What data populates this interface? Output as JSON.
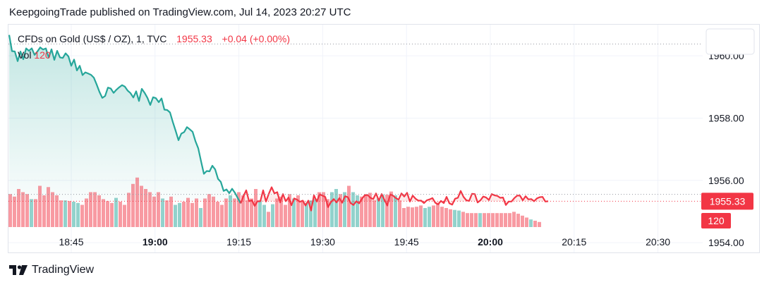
{
  "header": {
    "published_text": "KeepgoingTrade published on TradingView.com, Jul 14, 2023 20:27 UTC"
  },
  "legend": {
    "symbol": "CFDs on Gold (US$ / OZ), 1, TVC",
    "last_price": "1955.33",
    "change": "+0.04 (+0.00%)",
    "volume_label": "Vol",
    "volume_value": "120"
  },
  "footer": {
    "brand": "TradingView"
  },
  "colors": {
    "up": "#26a69a",
    "down": "#f23645",
    "area_up": "#26a69a",
    "area_down": "#ef5350",
    "grid": "#f0f3fa"
  },
  "chart_data": {
    "type": "area",
    "title": "CFDs on Gold (US$ / OZ), 1, TVC",
    "price_axis": {
      "ylim": [
        1954.5,
        1961.0
      ],
      "ticks": [
        "1954.00",
        "1956.00",
        "1958.00",
        "1960.00"
      ],
      "tick_values": [
        1954.0,
        1956.0,
        1958.0,
        1960.0
      ]
    },
    "time_axis": {
      "ticks": [
        "18:45",
        "19:00",
        "19:15",
        "19:30",
        "19:45",
        "20:00",
        "20:15",
        "20:30"
      ],
      "bold": [
        false,
        true,
        false,
        false,
        false,
        true,
        false,
        false
      ]
    },
    "baseline": 1955.33,
    "last_price_label": "1955.33",
    "volume_label": "120",
    "grid": true,
    "series": [
      {
        "name": "Price",
        "values": [
          1960.67,
          1960.15,
          1960.14,
          1959.83,
          1960.14,
          1959.89,
          1960.24,
          1960.16,
          1960.24,
          1960.03,
          1960.14,
          1960.27,
          1960.2,
          1960.24,
          1959.94,
          1960.21,
          1959.87,
          1960.16,
          1959.95,
          1959.93,
          1960.08,
          1959.98,
          1959.68,
          1959.88,
          1959.53,
          1959.68,
          1959.38,
          1959.47,
          1959.43,
          1959.39,
          1959.3,
          1959.08,
          1958.84,
          1958.65,
          1958.71,
          1958.98,
          1958.95,
          1958.81,
          1958.91,
          1958.99,
          1959.06,
          1959.01,
          1958.88,
          1958.8,
          1958.66,
          1958.86,
          1958.55,
          1958.94,
          1958.81,
          1958.65,
          1958.42,
          1958.67,
          1958.64,
          1958.51,
          1958.63,
          1958.27,
          1958.26,
          1958.18,
          1957.87,
          1957.59,
          1957.29,
          1957.5,
          1957.55,
          1957.71,
          1957.64,
          1957.56,
          1957.26,
          1957.03,
          1956.61,
          1956.21,
          1956.3,
          1956.29,
          1956.47,
          1956.35,
          1956.05,
          1955.95,
          1955.66,
          1955.71,
          1955.59,
          1955.73,
          1955.6,
          1955.43,
          1955.26,
          1955.49,
          1955.68,
          1955.33,
          1955.36,
          1955.18,
          1955.33,
          1955.33,
          1955.68,
          1955.32,
          1955.57,
          1955.78,
          1955.58,
          1955.62,
          1955.29,
          1955.56,
          1955.33,
          1955.45,
          1955.2,
          1955.42,
          1955.38,
          1955.31,
          1955.35,
          1955.19,
          1955.35,
          1955.03,
          1955.52,
          1955.32,
          1955.55,
          1955.51,
          1955.47,
          1955.14,
          1955.3,
          1955.4,
          1955.29,
          1955.43,
          1955.28,
          1955.49,
          1955.46,
          1955.27,
          1955.21,
          1955.33,
          1955.26,
          1955.41,
          1955.52,
          1955.53,
          1955.44,
          1955.4,
          1955.58,
          1955.35,
          1955.56,
          1955.37,
          1955.19,
          1955.55,
          1955.51,
          1955.43,
          1955.38,
          1955.58,
          1955.48,
          1955.6,
          1955.32,
          1955.51,
          1955.41,
          1955.35,
          1955.35,
          1955.27,
          1955.36,
          1955.39,
          1955.43,
          1955.28,
          1955.23,
          1955.34,
          1955.27,
          1955.47,
          1955.26,
          1955.22,
          1955.41,
          1955.44,
          1955.66,
          1955.47,
          1955.36,
          1955.34,
          1955.57,
          1955.56,
          1955.29,
          1955.36,
          1955.48,
          1955.45,
          1955.37,
          1955.56,
          1955.52,
          1955.5,
          1955.44,
          1955.45,
          1955.21,
          1955.32,
          1955.32,
          1955.43,
          1955.51,
          1955.51,
          1955.36,
          1955.49,
          1955.39,
          1955.4,
          1955.33,
          1955.42,
          1955.46,
          1955.47,
          1955.32,
          1955.33
        ]
      },
      {
        "name": "Vol",
        "values": [
          52,
          48,
          60,
          55,
          52,
          44,
          44,
          65,
          50,
          63,
          55,
          50,
          42,
          42,
          41,
          40,
          38,
          35,
          45,
          55,
          55,
          50,
          44,
          41,
          38,
          46,
          40,
          35,
          54,
          68,
          78,
          65,
          60,
          55,
          48,
          55,
          45,
          42,
          48,
          35,
          38,
          40,
          46,
          38,
          45,
          30,
          45,
          52,
          48,
          40,
          35,
          45,
          50,
          45,
          55,
          50,
          42,
          45,
          60,
          42,
          35,
          24,
          36,
          45,
          48,
          35,
          52,
          45,
          50,
          42,
          38,
          42,
          44,
          55,
          55,
          44,
          55,
          60,
          52,
          55,
          65,
          55,
          50,
          48,
          52,
          54,
          42,
          45,
          51,
          51,
          56,
          50,
          42,
          30,
          32,
          31,
          32,
          34,
          30,
          32,
          34,
          38,
          32,
          30,
          28,
          27,
          26,
          24,
          22,
          22,
          22,
          22,
          22,
          22,
          22,
          22,
          22,
          22,
          22,
          24,
          21,
          18,
          15,
          12,
          10,
          8
        ],
        "up": [
          false,
          false,
          false,
          false,
          false,
          true,
          false,
          false,
          false,
          false,
          false,
          false,
          false,
          true,
          false,
          true,
          true,
          false,
          false,
          false,
          false,
          false,
          false,
          false,
          false,
          true,
          false,
          false,
          false,
          false,
          false,
          false,
          false,
          false,
          false,
          false,
          true,
          false,
          false,
          true,
          true,
          false,
          false,
          false,
          false,
          true,
          false,
          false,
          false,
          false,
          false,
          false,
          true,
          false,
          false,
          false,
          false,
          false,
          false,
          true,
          true,
          false,
          true,
          false,
          false,
          false,
          false,
          true,
          false,
          false,
          true,
          true,
          true,
          false,
          false,
          false,
          true,
          true,
          false,
          true,
          false,
          true,
          true,
          false,
          false,
          false,
          false,
          true,
          true,
          false,
          false,
          true,
          false,
          false,
          false,
          false,
          false,
          false,
          true,
          true,
          false,
          false,
          false,
          false,
          false,
          true,
          true,
          false,
          false,
          false,
          false,
          true,
          false,
          false,
          false,
          false,
          false,
          false,
          false,
          false,
          false,
          false,
          false,
          true,
          false,
          false
        ]
      }
    ]
  }
}
